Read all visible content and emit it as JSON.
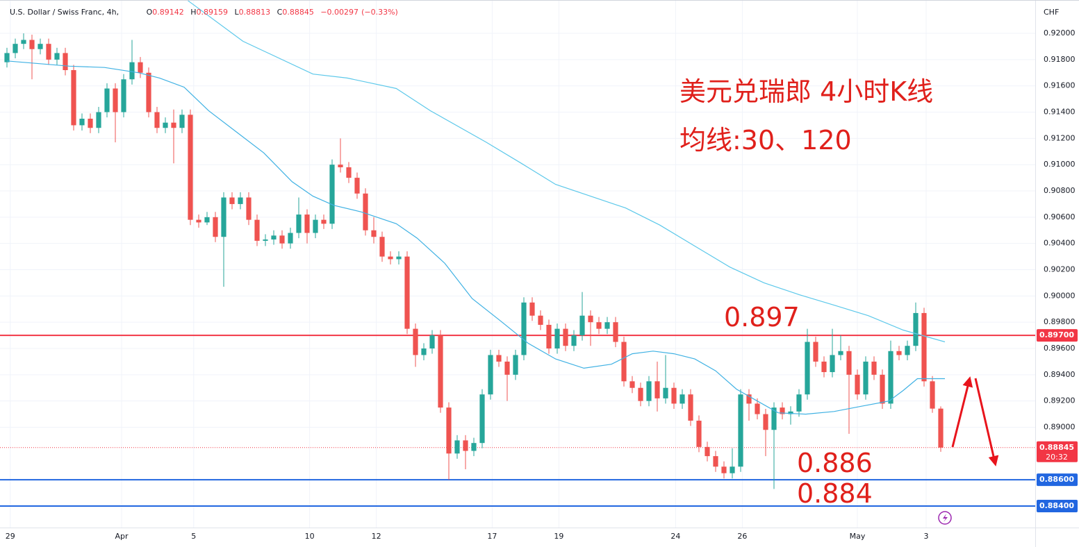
{
  "chart_data": {
    "type": "candlestick",
    "title": "U.S. Dollar / Swiss Franc, 4h,",
    "ohlc_labels": [
      "O",
      "H",
      "L",
      "C"
    ],
    "change": "−0.00297",
    "change_pct": "(−0.33%)",
    "currency": "CHF",
    "countdown": "20:32",
    "up_color": "#26a69a",
    "down_color": "#ef5350",
    "open": [
      0.9178,
      0.9185,
      0.9192,
      0.9195,
      0.9188,
      0.9192,
      0.918,
      0.9185,
      0.9172,
      0.913,
      0.9135,
      0.9128,
      0.914,
      0.9158,
      0.914,
      0.9165,
      0.9178,
      0.917,
      0.914,
      0.9128,
      0.9132,
      0.9128,
      0.9138,
      0.9058,
      0.9056,
      0.906,
      0.9045,
      0.9075,
      0.907,
      0.9075,
      0.9058,
      0.9042,
      0.9043,
      0.9046,
      0.904,
      0.9048,
      0.9062,
      0.9048,
      0.9058,
      0.9055,
      0.91,
      0.9098,
      0.909,
      0.9078,
      0.905,
      0.9045,
      0.903,
      0.9028,
      0.903,
      0.8975,
      0.8955,
      0.896,
      0.897,
      0.8915,
      0.888,
      0.889,
      0.8882,
      0.8888,
      0.8925,
      0.8955,
      0.895,
      0.894,
      0.8955,
      0.8995,
      0.8985,
      0.8978,
      0.896,
      0.8975,
      0.8962,
      0.897,
      0.8985,
      0.898,
      0.8975,
      0.898,
      0.8965,
      0.8935,
      0.893,
      0.892,
      0.8935,
      0.8922,
      0.893,
      0.8918,
      0.8925,
      0.8905,
      0.8885,
      0.8878,
      0.887,
      0.8865,
      0.887,
      0.8925,
      0.8918,
      0.891,
      0.8898,
      0.8915,
      0.891,
      0.8912,
      0.8925,
      0.8965,
      0.895,
      0.8942,
      0.8955,
      0.8958,
      0.894,
      0.8925,
      0.895,
      0.894,
      0.8918,
      0.8958,
      0.8955,
      0.8962,
      0.8987,
      0.8935,
      0.89142
    ],
    "high": [
      0.9189,
      0.9196,
      0.92,
      0.9199,
      0.9196,
      0.9196,
      0.9189,
      0.9189,
      0.9176,
      0.9139,
      0.9139,
      0.9144,
      0.9162,
      0.9162,
      0.9169,
      0.9195,
      0.9182,
      0.9174,
      0.9144,
      0.9136,
      0.9142,
      0.9142,
      0.9142,
      0.9062,
      0.9064,
      0.9064,
      0.9079,
      0.9079,
      0.9079,
      0.9079,
      0.9062,
      0.9047,
      0.905,
      0.905,
      0.9052,
      0.9075,
      0.9066,
      0.9062,
      0.9062,
      0.9104,
      0.912,
      0.9102,
      0.9094,
      0.9082,
      0.906,
      0.9049,
      0.9034,
      0.9034,
      0.9034,
      0.8979,
      0.8964,
      0.8974,
      0.8974,
      0.8919,
      0.8894,
      0.8894,
      0.8892,
      0.8929,
      0.8959,
      0.8959,
      0.8954,
      0.8959,
      0.8999,
      0.8999,
      0.8989,
      0.8982,
      0.8979,
      0.8979,
      0.8974,
      0.9003,
      0.8989,
      0.8984,
      0.8984,
      0.8984,
      0.8969,
      0.8939,
      0.8934,
      0.8939,
      0.895,
      0.8955,
      0.8934,
      0.8929,
      0.8929,
      0.8909,
      0.8889,
      0.8882,
      0.8874,
      0.8884,
      0.8929,
      0.8929,
      0.8922,
      0.8914,
      0.8919,
      0.8919,
      0.8916,
      0.8929,
      0.8975,
      0.8969,
      0.8954,
      0.8975,
      0.897,
      0.8962,
      0.8944,
      0.8954,
      0.8954,
      0.8944,
      0.8966,
      0.8962,
      0.8966,
      0.8995,
      0.8991,
      0.8939,
      0.89159
    ],
    "low": [
      0.9174,
      0.9181,
      0.9188,
      0.9165,
      0.9184,
      0.9176,
      0.9176,
      0.9168,
      0.9126,
      0.9126,
      0.9124,
      0.9124,
      0.9136,
      0.9117,
      0.9136,
      0.9161,
      0.9166,
      0.9136,
      0.9124,
      0.9124,
      0.9101,
      0.9124,
      0.9054,
      0.9052,
      0.9054,
      0.9041,
      0.9007,
      0.9066,
      0.9066,
      0.9054,
      0.9038,
      0.9038,
      0.9039,
      0.9036,
      0.9036,
      0.9044,
      0.904,
      0.9044,
      0.9051,
      0.9051,
      0.9094,
      0.9086,
      0.9074,
      0.9046,
      0.904,
      0.9026,
      0.9024,
      0.9024,
      0.8971,
      0.8946,
      0.8951,
      0.8956,
      0.8911,
      0.886,
      0.8876,
      0.8868,
      0.8878,
      0.8884,
      0.8921,
      0.8946,
      0.892,
      0.8936,
      0.8951,
      0.8981,
      0.8974,
      0.8956,
      0.8956,
      0.8958,
      0.8958,
      0.8966,
      0.8962,
      0.8971,
      0.8971,
      0.8961,
      0.8931,
      0.8926,
      0.8916,
      0.8916,
      0.8912,
      0.8918,
      0.8914,
      0.8914,
      0.8901,
      0.8881,
      0.8874,
      0.8866,
      0.8861,
      0.8861,
      0.8866,
      0.8905,
      0.8906,
      0.8878,
      0.8853,
      0.8906,
      0.8902,
      0.8908,
      0.8921,
      0.8946,
      0.8938,
      0.8938,
      0.8951,
      0.8895,
      0.8921,
      0.8921,
      0.8936,
      0.8914,
      0.8914,
      0.8951,
      0.8951,
      0.8958,
      0.8931,
      0.8911,
      0.88813
    ],
    "close": [
      0.9185,
      0.9192,
      0.9195,
      0.9188,
      0.9192,
      0.918,
      0.9185,
      0.9172,
      0.913,
      0.9135,
      0.9128,
      0.914,
      0.9158,
      0.914,
      0.9165,
      0.9178,
      0.917,
      0.914,
      0.9128,
      0.9132,
      0.9128,
      0.9138,
      0.9058,
      0.9056,
      0.906,
      0.9045,
      0.9075,
      0.907,
      0.9075,
      0.9058,
      0.9042,
      0.9043,
      0.9046,
      0.904,
      0.9048,
      0.9062,
      0.9048,
      0.9058,
      0.9055,
      0.91,
      0.9098,
      0.909,
      0.9078,
      0.905,
      0.9045,
      0.903,
      0.9028,
      0.903,
      0.8975,
      0.8955,
      0.896,
      0.897,
      0.8915,
      0.888,
      0.889,
      0.8882,
      0.8888,
      0.8925,
      0.8955,
      0.895,
      0.894,
      0.8955,
      0.8995,
      0.8985,
      0.8978,
      0.896,
      0.8975,
      0.8962,
      0.897,
      0.8985,
      0.898,
      0.8975,
      0.898,
      0.8965,
      0.8935,
      0.893,
      0.892,
      0.8935,
      0.8922,
      0.893,
      0.8918,
      0.8925,
      0.8905,
      0.8885,
      0.8878,
      0.887,
      0.8865,
      0.887,
      0.8925,
      0.8918,
      0.891,
      0.8898,
      0.8915,
      0.891,
      0.8912,
      0.8925,
      0.8965,
      0.895,
      0.8942,
      0.8955,
      0.8958,
      0.894,
      0.8925,
      0.895,
      0.894,
      0.8918,
      0.8958,
      0.8955,
      0.8962,
      0.8987,
      0.8935,
      0.89142,
      0.88845
    ],
    "series": [
      {
        "color": "#3fb1e3",
        "x": [
          0,
          7.5,
          11.7,
          15.8,
          18.3,
          21.25,
          24.2,
          27.5,
          30.8,
          34.2,
          36.7,
          39.2,
          42.5,
          46.7,
          49.2,
          52.5,
          55.8,
          59.2,
          62.5,
          65.8,
          69.2,
          72.5,
          75,
          77.5,
          80,
          82.5,
          85,
          87.5,
          90,
          92.5,
          95.8,
          99.2,
          102.5,
          105.8,
          107.5,
          109.2,
          112.5
        ],
        "values": [
          0.9179,
          0.9175,
          0.9174,
          0.917,
          0.9166,
          0.9159,
          0.9141,
          0.9125,
          0.9109,
          0.9087,
          0.9076,
          0.9069,
          0.9064,
          0.9055,
          0.9044,
          0.9025,
          0.8998,
          0.8981,
          0.8964,
          0.8952,
          0.8945,
          0.8948,
          0.8956,
          0.8958,
          0.8956,
          0.8952,
          0.8943,
          0.8929,
          0.892,
          0.8911,
          0.891,
          0.8912,
          0.8916,
          0.892,
          0.8928,
          0.8937,
          0.8937
        ]
      },
      {
        "color": "#5cc8ea",
        "x": [
          21.7,
          28.3,
          36.7,
          40.8,
          46.7,
          50.8,
          57.5,
          61.7,
          65.8,
          74.2,
          78.3,
          82.5,
          86.7,
          90.8,
          95,
          99.2,
          103.3,
          107.5,
          112.5
        ],
        "values": [
          0.9225,
          0.9194,
          0.9169,
          0.9166,
          0.9158,
          0.9141,
          0.9117,
          0.9101,
          0.9085,
          0.9067,
          0.9054,
          0.9038,
          0.9022,
          0.901,
          0.9001,
          0.8993,
          0.8985,
          0.8974,
          0.8965
        ]
      }
    ],
    "xlim": [
      -0.8333,
      123.3333
    ],
    "xticks": [
      {
        "value": 0.4,
        "label": "29"
      },
      {
        "value": 13.75,
        "label": "Apr"
      },
      {
        "value": 22.4,
        "label": "5"
      },
      {
        "value": 36.3,
        "label": "10"
      },
      {
        "value": 44.3,
        "label": "12"
      },
      {
        "value": 58.2,
        "label": "17"
      },
      {
        "value": 66.2,
        "label": "19"
      },
      {
        "value": 80.2,
        "label": "24"
      },
      {
        "value": 88.2,
        "label": "26"
      },
      {
        "value": 102,
        "label": "May"
      },
      {
        "value": 110.25,
        "label": "3"
      }
    ],
    "ylim": [
      0.88236,
      0.92254
    ],
    "yticks": [
      {
        "value": 0.89,
        "label": "0.89000"
      },
      {
        "value": 0.892,
        "label": "0.89200"
      },
      {
        "value": 0.894,
        "label": "0.89400"
      },
      {
        "value": 0.896,
        "label": "0.89600"
      },
      {
        "value": 0.898,
        "label": "0.89800"
      },
      {
        "value": 0.9,
        "label": "0.90000"
      },
      {
        "value": 0.902,
        "label": "0.90200"
      },
      {
        "value": 0.904,
        "label": "0.90400"
      },
      {
        "value": 0.906,
        "label": "0.90600"
      },
      {
        "value": 0.908,
        "label": "0.90800"
      },
      {
        "value": 0.91,
        "label": "0.91000"
      },
      {
        "value": 0.912,
        "label": "0.91200"
      },
      {
        "value": 0.914,
        "label": "0.91400"
      },
      {
        "value": 0.916,
        "label": "0.91600"
      },
      {
        "value": 0.918,
        "label": "0.91800"
      },
      {
        "value": 0.92,
        "label": "0.92000"
      }
    ],
    "grid": true,
    "hlines": [
      {
        "value": 0.897,
        "label": "0.89700",
        "color": "#f23645"
      },
      {
        "value": 0.886,
        "label": "0.88600",
        "color": "#2166e0"
      },
      {
        "value": 0.884,
        "label": "0.88400",
        "color": "#2166e0"
      }
    ],
    "annotations": [
      "美元兑瑞郎 4小时K线",
      "均线:30、120",
      "0.897",
      "0.886",
      "0.884"
    ]
  }
}
